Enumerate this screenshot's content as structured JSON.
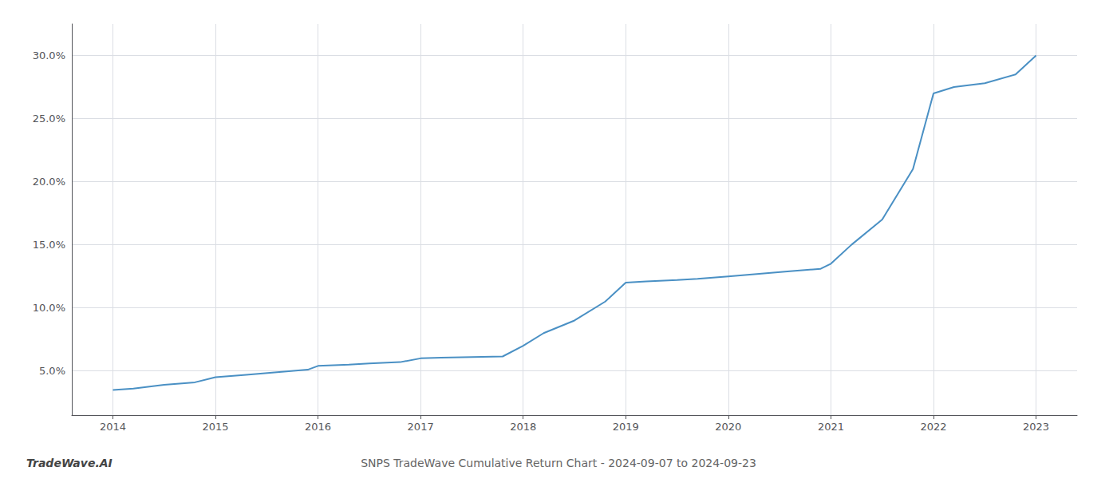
{
  "chart_data": {
    "type": "line",
    "title": "SNPS TradeWave Cumulative Return Chart - 2024-09-07 to 2024-09-23",
    "annotations": [
      "TradeWave.AI"
    ],
    "x": [
      2014.0,
      2014.2,
      2014.5,
      2014.8,
      2015.0,
      2015.3,
      2015.6,
      2015.9,
      2016.0,
      2016.3,
      2016.5,
      2016.8,
      2017.0,
      2017.2,
      2017.5,
      2017.8,
      2018.0,
      2018.2,
      2018.5,
      2018.8,
      2019.0,
      2019.2,
      2019.5,
      2019.7,
      2020.0,
      2020.3,
      2020.6,
      2020.9,
      2021.0,
      2021.2,
      2021.5,
      2021.8,
      2022.0,
      2022.2,
      2022.5,
      2022.8,
      2023.0
    ],
    "values": [
      3.5,
      3.6,
      3.9,
      4.1,
      4.5,
      4.7,
      4.9,
      5.1,
      5.4,
      5.5,
      5.6,
      5.7,
      6.0,
      6.05,
      6.1,
      6.15,
      7.0,
      8.0,
      9.0,
      10.5,
      12.0,
      12.1,
      12.2,
      12.3,
      12.5,
      12.7,
      12.9,
      13.1,
      13.5,
      15.0,
      17.0,
      21.0,
      27.0,
      27.5,
      27.8,
      28.5,
      30.0
    ],
    "color": "#4a90c4",
    "xlim": [
      2013.6,
      2023.4
    ],
    "ylim": [
      1.5,
      32.5
    ],
    "xticks": [
      2014,
      2015,
      2016,
      2017,
      2018,
      2019,
      2020,
      2021,
      2022,
      2023
    ],
    "yticks": [
      {
        "value": 5.0,
        "label": "5.0%"
      },
      {
        "value": 10.0,
        "label": "10.0%"
      },
      {
        "value": 15.0,
        "label": "15.0%"
      },
      {
        "value": 20.0,
        "label": "20.0%"
      },
      {
        "value": 25.0,
        "label": "25.0%"
      },
      {
        "value": 30.0,
        "label": "30.0%"
      }
    ],
    "grid": true
  }
}
